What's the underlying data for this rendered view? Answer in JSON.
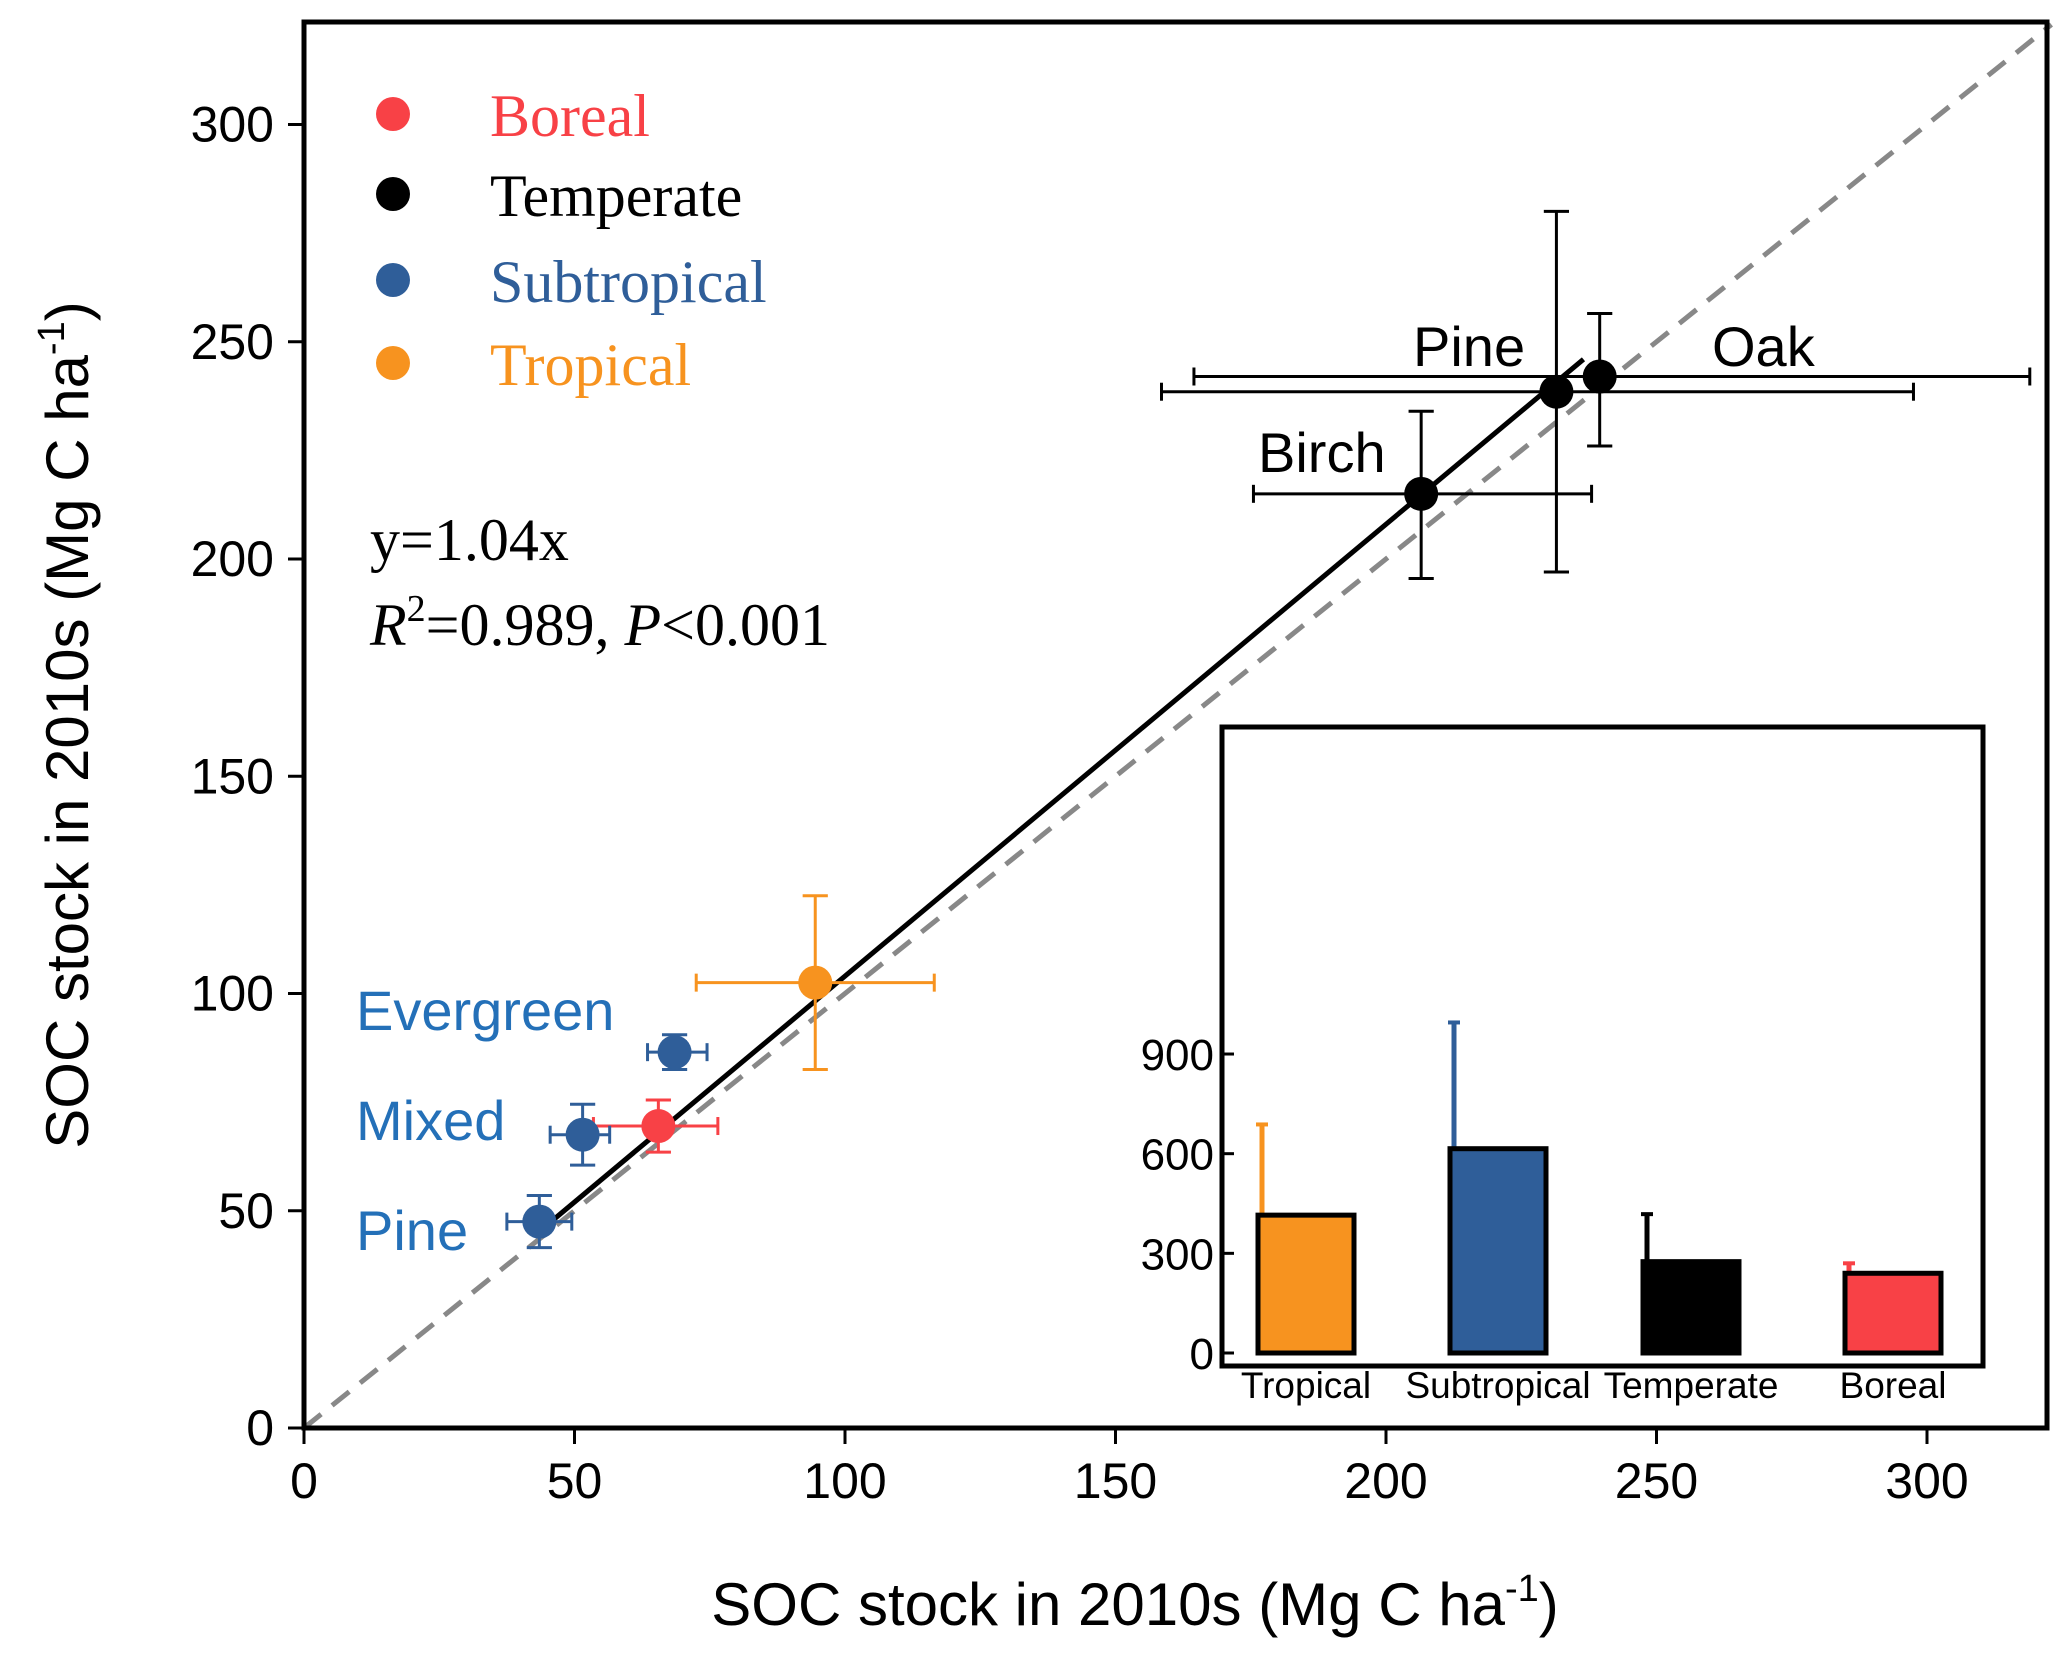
{
  "chart_data": [
    {
      "type": "scatter",
      "xlabel": "SOC stock in 2010s (Mg C ha",
      "ylabel": "SOC stock in 2010s (Mg C ha",
      "unit_superscript": "-1",
      "axis_close": ")",
      "xlim": [
        0,
        323
      ],
      "ylim": [
        0,
        323
      ],
      "xticks": [
        "0",
        "50",
        "100",
        "150",
        "200",
        "250",
        "300"
      ],
      "yticks": [
        "0",
        "50",
        "100",
        "150",
        "200",
        "250",
        "300"
      ],
      "grid": false,
      "legend": {
        "placement": "top-left",
        "entries": [
          {
            "label": "Boreal",
            "color": "#f84146"
          },
          {
            "label": "Temperate",
            "color": "#000000"
          },
          {
            "label": "Subtropical",
            "color": "#2f5e99"
          },
          {
            "label": "Tropical",
            "color": "#f7931f"
          }
        ]
      },
      "annotation": {
        "equation": "y=1.04x",
        "r_label": "R",
        "r_superscript": "2",
        "r_value": "=0.989, ",
        "p_label": "P",
        "p_value": "<0.001"
      },
      "fit_line": {
        "slope": 1.04,
        "x_range": [
          45.5,
          236.5
        ],
        "color": "#000000"
      },
      "identity_line": {
        "style": "dashed",
        "color": "#888888"
      },
      "series": [
        {
          "name": "Boreal",
          "color": "#f84146",
          "points": [
            {
              "x": 65.5,
              "y": 69.5,
              "xerr": [
                53.5,
                76.5
              ],
              "yerr": [
                63.5,
                75.5
              ]
            }
          ]
        },
        {
          "name": "Temperate",
          "color": "#000000",
          "points": [
            {
              "x": 206.5,
              "y": 215,
              "xerr": [
                175.5,
                238
              ],
              "yerr": [
                195.5,
                234
              ],
              "label": "Birch"
            },
            {
              "x": 231.5,
              "y": 238.5,
              "xerr": [
                158.5,
                297.5
              ],
              "yerr": [
                197,
                280
              ],
              "label": "Pine"
            },
            {
              "x": 239.5,
              "y": 242,
              "xerr": [
                164.5,
                319
              ],
              "yerr": [
                226,
                256.5
              ],
              "label": "Oak"
            }
          ]
        },
        {
          "name": "Subtropical",
          "color": "#2f5e99",
          "points": [
            {
              "x": 68.5,
              "y": 86.5,
              "xerr": [
                63.5,
                74.5
              ],
              "yerr": [
                82.5,
                90.5
              ],
              "label": "Evergreen"
            },
            {
              "x": 51.5,
              "y": 67.5,
              "xerr": [
                45.5,
                56.5
              ],
              "yerr": [
                60.5,
                74.5
              ],
              "label": "Mixed"
            },
            {
              "x": 43.5,
              "y": 47.5,
              "xerr": [
                37.5,
                49.5
              ],
              "yerr": [
                41.5,
                53.5
              ],
              "label": "Pine"
            }
          ]
        },
        {
          "name": "Tropical",
          "color": "#f7931f",
          "points": [
            {
              "x": 94.5,
              "y": 102.5,
              "xerr": [
                72.5,
                116.5
              ],
              "yerr": [
                82.5,
                122.5
              ]
            }
          ]
        }
      ]
    },
    {
      "type": "bar",
      "placement": "inset-bottom-right",
      "categories": [
        "Tropical",
        "Subtropical",
        "Temperate",
        "Boreal"
      ],
      "values": [
        415,
        615,
        275,
        240
      ],
      "error_upper": [
        688,
        995,
        418,
        270
      ],
      "colors": [
        "#f7931f",
        "#2f5e99",
        "#000000",
        "#f84146"
      ],
      "ylim": [
        0,
        1000
      ],
      "yticks": [
        "0",
        "300",
        "600",
        "900"
      ]
    }
  ]
}
